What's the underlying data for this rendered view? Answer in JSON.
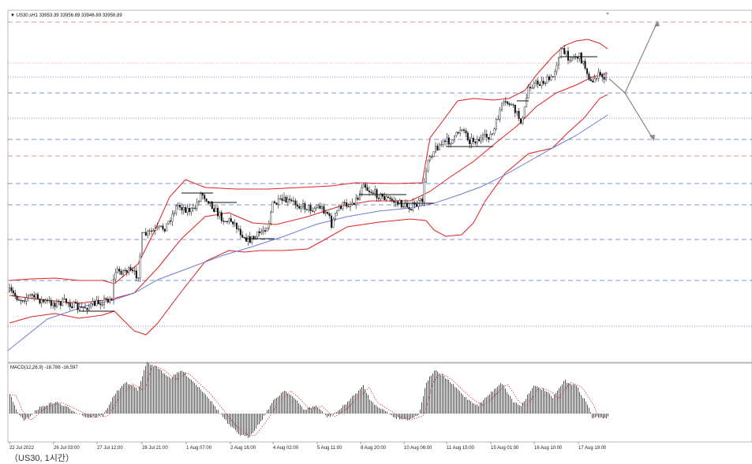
{
  "header": {
    "symbol_line": "▼ US30.sH1  33953.39 33956.89 33946.89 33956.89"
  },
  "macd": {
    "label": "MACD(12,26,9) -18.788 -16.597"
  },
  "time_axis": {
    "labels": [
      "22 Jul 2022",
      "26 Jul 03:00",
      "27 Jul 12:00",
      "28 Jul 21:00",
      "1 Aug 07:00",
      "2 Aug 16:00",
      "4 Aug 02:00",
      "5 Aug 11:00",
      "8 Aug 20:00",
      "10 Aug 06:00",
      "11 Aug 15:00",
      "15 Aug 01:00",
      "16 Aug 10:00",
      "17 Aug 19:00"
    ]
  },
  "caption": "（US30, 1시간）",
  "colors": {
    "background": "#ffffff",
    "candles": "#111111",
    "bollinger": "#e02020",
    "moving_average": "#6b7bd8",
    "level_lines": "#5a6fc7",
    "level_lines_red": "#e07070",
    "macd_bars": "#555555",
    "macd_signal": "#d02020",
    "projection": "#888888"
  }
}
